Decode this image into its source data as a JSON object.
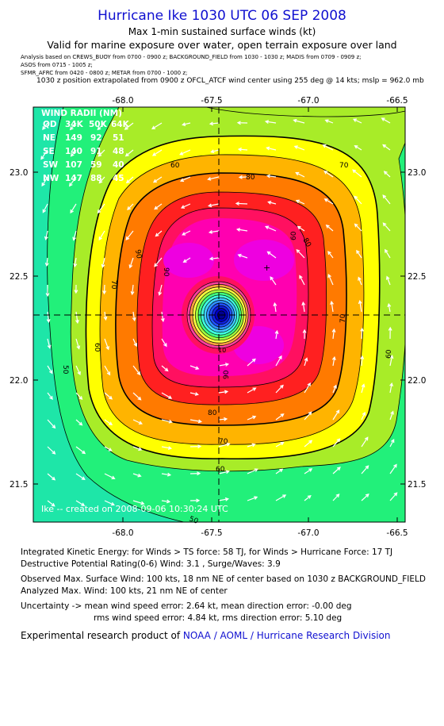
{
  "header": {
    "title": "Hurricane Ike 1030 UTC 06 SEP 2008",
    "subtitle": "Max 1-min sustained surface winds (kt)",
    "validity": "Valid for marine exposure over water, open terrain exposure over land",
    "analysis_lines": [
      "Analysis based on  CREWS_BUOY from 0700 - 0900 z;  BACKGROUND_FIELD from 1030 - 1030 z;  MADIS from 0709 - 0909 z;",
      "ASOS from 0715 - 1005 z;",
      "SFMR_AFRC from 0420 - 0800 z;  METAR from 0700 - 1000 z;"
    ],
    "position_note": "1030 z position extrapolated from 0900 z OFCL_ATCF wind center using 255 deg @ 14 kts; mslp = 962.0 mb"
  },
  "map": {
    "lon_ticks": [
      "-68.0",
      "-67.5",
      "-67.0",
      "-66.5"
    ],
    "lat_ticks": [
      "23.0",
      "22.5",
      "22.0",
      "21.5"
    ],
    "wind_radii": {
      "title": "WIND RADII (NM)",
      "header": [
        "QD",
        "34K",
        "50K",
        "64K"
      ],
      "rows": [
        [
          "NE",
          "149",
          "92",
          "51"
        ],
        [
          "SE",
          "140",
          "91",
          "48"
        ],
        [
          "SW",
          "107",
          "59",
          "40"
        ],
        [
          "NW",
          "147",
          "88",
          "45"
        ]
      ]
    },
    "contour_labels": [
      "60",
      "70",
      "80",
      "90",
      "70",
      "60",
      "90",
      "80",
      "70",
      "60",
      "50",
      "10",
      "90",
      "80",
      "70",
      "60",
      "50",
      "60"
    ],
    "footer_label": "Ike -- created on 2008-09-06 10:30:24 UTC",
    "colors": {
      "lt50": "#1ee6a8",
      "c50_60": "#22f07a",
      "c60_70": "#a8ec28",
      "c70_80": "#ffff00",
      "c80_90": "#ffb400",
      "c90_100": "#ff7a00",
      "c100": "#ff2020",
      "c110": "#ff1060",
      "c120": "#ff00b0",
      "c130": "#ee00e0"
    }
  },
  "footer": {
    "ike": "Integrated Kinetic Energy:  for Winds > TS force: 58 TJ,  for Winds > Hurricane Force: 17 TJ",
    "dpr": "Destructive Potential Rating(0-6)   Wind: 3.1 , Surge/Waves: 3.9",
    "observed": "Observed Max. Surface Wind: 100 kts, 18 nm NE of center based on 1030 z BACKGROUND_FIELD",
    "analyzed": "Analyzed Max. Wind: 100 kts, 21 nm NE of center",
    "uncertainty1": "Uncertainty -> mean wind speed error: 2.64 kt,   mean direction error:  -0.00 deg",
    "uncertainty2": "rms wind speed error: 4.84 kt,   rms direction error: 5.10 deg",
    "credit_prefix": "Experimental research product of ",
    "credit_org": "NOAA / AOML / Hurricane Research Division"
  }
}
